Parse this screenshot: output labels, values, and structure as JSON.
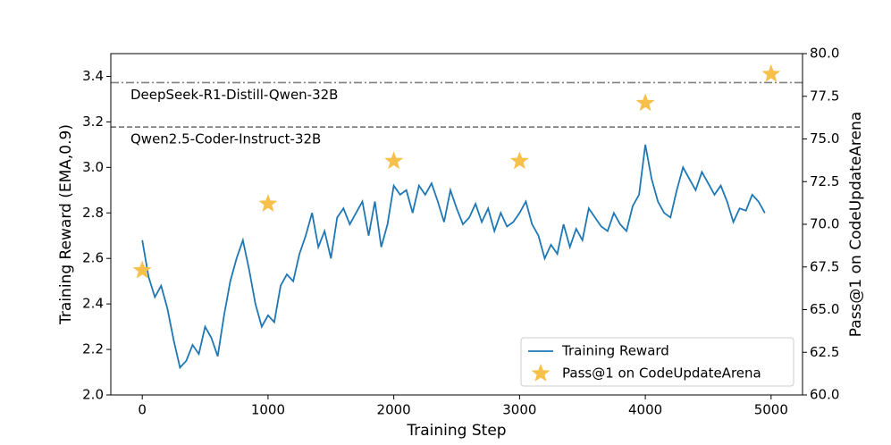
{
  "chart_data": {
    "type": "line",
    "xlabel": "Training Step",
    "ylabel": "Training Reward (EMA,0.9)",
    "y2label": "Pass@1 on CodeUpdateArena",
    "xlim": [
      -250,
      5250
    ],
    "xticks": [
      0,
      1000,
      2000,
      3000,
      4000,
      5000
    ],
    "ylim": [
      2.0,
      3.5
    ],
    "yticks": [
      {
        "value": 2,
        "label": "2.0"
      },
      2.2,
      2.4,
      2.6,
      2.8,
      {
        "value": 3,
        "label": "3.0"
      },
      3.2,
      3.4
    ],
    "y2lim": [
      60,
      80
    ],
    "y2ticks": [
      {
        "value": 60,
        "label": "60.0"
      },
      62.5,
      {
        "value": 65,
        "label": "65.0"
      },
      67.5,
      {
        "value": 70,
        "label": "70.0"
      },
      72.5,
      {
        "value": 75,
        "label": "75.0"
      },
      77.5,
      {
        "value": 80,
        "label": "80.0"
      }
    ],
    "legend": "lower right",
    "x": [
      0,
      50,
      100,
      150,
      200,
      250,
      300,
      350,
      400,
      450,
      500,
      550,
      600,
      650,
      700,
      750,
      800,
      850,
      900,
      950,
      1000,
      1050,
      1100,
      1150,
      1200,
      1250,
      1300,
      1350,
      1400,
      1450,
      1500,
      1550,
      1600,
      1650,
      1700,
      1750,
      1800,
      1850,
      1900,
      1950,
      2000,
      2050,
      2100,
      2150,
      2200,
      2250,
      2300,
      2350,
      2400,
      2450,
      2500,
      2550,
      2600,
      2650,
      2700,
      2750,
      2800,
      2850,
      2900,
      2950,
      3000,
      3050,
      3100,
      3150,
      3200,
      3250,
      3300,
      3350,
      3400,
      3450,
      3500,
      3550,
      3600,
      3650,
      3700,
      3750,
      3800,
      3850,
      3900,
      3950,
      4000,
      4050,
      4100,
      4150,
      4200,
      4250,
      4300,
      4350,
      4400,
      4450,
      4500,
      4550,
      4600,
      4650,
      4700,
      4750,
      4800,
      4850,
      4900,
      4950
    ],
    "series": [
      {
        "name": "Training Reward",
        "color": "#1f77b4",
        "values": [
          2.68,
          2.52,
          2.43,
          2.48,
          2.38,
          2.24,
          2.12,
          2.15,
          2.22,
          2.18,
          2.3,
          2.25,
          2.17,
          2.35,
          2.5,
          2.6,
          2.68,
          2.55,
          2.4,
          2.3,
          2.35,
          2.32,
          2.48,
          2.53,
          2.5,
          2.62,
          2.7,
          2.8,
          2.65,
          2.72,
          2.6,
          2.78,
          2.82,
          2.75,
          2.8,
          2.85,
          2.7,
          2.85,
          2.65,
          2.75,
          2.92,
          2.88,
          2.9,
          2.8,
          2.92,
          2.88,
          2.93,
          2.85,
          2.76,
          2.9,
          2.82,
          2.75,
          2.78,
          2.84,
          2.76,
          2.82,
          2.72,
          2.8,
          2.74,
          2.76,
          2.8,
          2.85,
          2.75,
          2.7,
          2.6,
          2.66,
          2.62,
          2.75,
          2.65,
          2.73,
          2.68,
          2.82,
          2.78,
          2.74,
          2.72,
          2.8,
          2.75,
          2.72,
          2.83,
          2.88,
          3.1,
          2.95,
          2.85,
          2.8,
          2.78,
          2.9,
          3.0,
          2.95,
          2.9,
          2.98,
          2.93,
          2.88,
          2.92,
          2.85,
          2.76,
          2.82,
          2.81,
          2.88,
          2.85,
          2.8
        ]
      },
      {
        "name": "Pass@1 on CodeUpdateArena",
        "type": "scatter",
        "marker": "star",
        "axis": "y2",
        "color": "#f7c04a",
        "x": [
          0,
          1000,
          2000,
          3000,
          4000,
          5000
        ],
        "values": [
          67.3,
          71.2,
          73.7,
          73.7,
          77.1,
          78.8
        ]
      }
    ],
    "reference_lines": [
      {
        "label": "DeepSeek-R1-Distill-Qwen-32B",
        "value": 78.3,
        "axis": "y2",
        "style": "dashdot",
        "color": "#808080"
      },
      {
        "label": "Qwen2.5-Coder-Instruct-32B",
        "value": 75.7,
        "axis": "y2",
        "style": "dashed",
        "color": "#696969"
      }
    ]
  }
}
